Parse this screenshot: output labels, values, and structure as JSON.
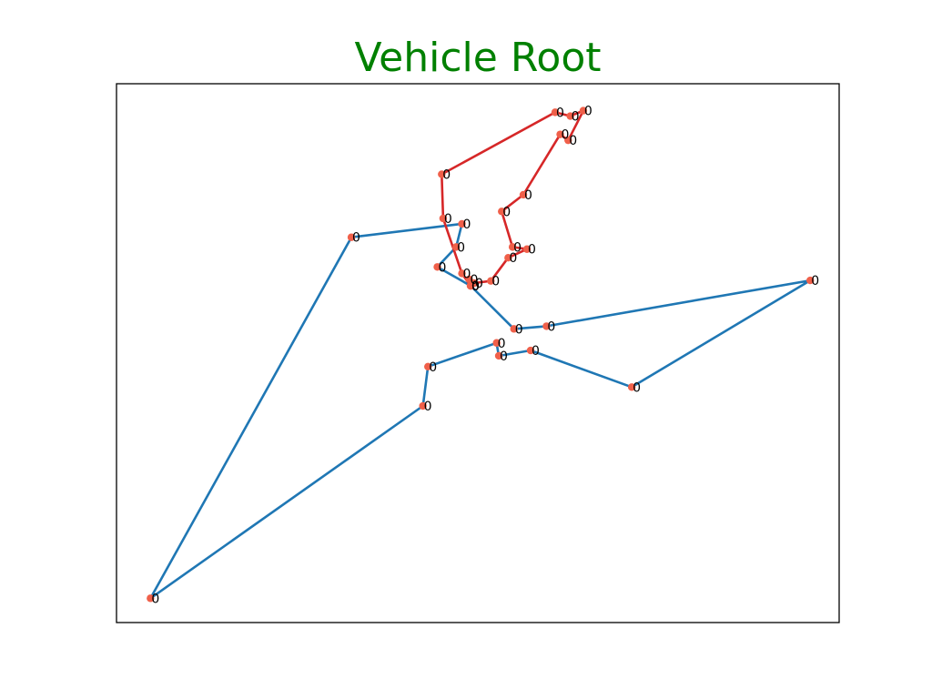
{
  "chart_data": {
    "type": "line",
    "title": "Vehicle Root",
    "title_color": "#008000",
    "xlabel": "",
    "ylabel": "",
    "grid": false,
    "xlim": [
      0,
      1000
    ],
    "ylim": [
      0,
      1000
    ],
    "node_color": "#f0604a",
    "series": [
      {
        "color": "#1f77b4",
        "points": [
          {
            "x": 490,
            "y": 625,
            "label": "0"
          },
          {
            "x": 550,
            "y": 545,
            "label": "0"
          },
          {
            "x": 595,
            "y": 550,
            "label": "0"
          },
          {
            "x": 960,
            "y": 635,
            "label": "0"
          },
          {
            "x": 713,
            "y": 437,
            "label": "0"
          },
          {
            "x": 573,
            "y": 505,
            "label": "0"
          },
          {
            "x": 529,
            "y": 495,
            "label": "0"
          },
          {
            "x": 526,
            "y": 519,
            "label": "0"
          },
          {
            "x": 431,
            "y": 475,
            "label": "0"
          },
          {
            "x": 424,
            "y": 402,
            "label": "0"
          },
          {
            "x": 47,
            "y": 45,
            "label": "0"
          },
          {
            "x": 325,
            "y": 715,
            "label": "0"
          },
          {
            "x": 478,
            "y": 740,
            "label": "0"
          },
          {
            "x": 470,
            "y": 697,
            "label": "0"
          },
          {
            "x": 444,
            "y": 660,
            "label": "0"
          },
          {
            "x": 490,
            "y": 625,
            "label": "0"
          }
        ]
      },
      {
        "color": "#d62728",
        "points": [
          {
            "x": 490,
            "y": 625,
            "label": "0"
          },
          {
            "x": 478,
            "y": 648,
            "label": "0"
          },
          {
            "x": 452,
            "y": 750,
            "label": "0"
          },
          {
            "x": 450,
            "y": 832,
            "label": "0"
          },
          {
            "x": 607,
            "y": 947,
            "label": "0"
          },
          {
            "x": 628,
            "y": 940,
            "label": "0"
          },
          {
            "x": 646,
            "y": 950,
            "label": "0"
          },
          {
            "x": 625,
            "y": 895,
            "label": "0"
          },
          {
            "x": 614,
            "y": 906,
            "label": "0"
          },
          {
            "x": 563,
            "y": 794,
            "label": "0"
          },
          {
            "x": 533,
            "y": 763,
            "label": "0"
          },
          {
            "x": 548,
            "y": 697,
            "label": "0"
          },
          {
            "x": 568,
            "y": 693,
            "label": "0"
          },
          {
            "x": 542,
            "y": 677,
            "label": "0"
          },
          {
            "x": 518,
            "y": 634,
            "label": "0"
          },
          {
            "x": 495,
            "y": 630,
            "label": "0"
          }
        ]
      },
      {
        "color": "#2ca02c",
        "points": [
          {
            "x": 488,
            "y": 637,
            "label": "0"
          },
          {
            "x": 490,
            "y": 625,
            "label": "0"
          }
        ]
      }
    ]
  }
}
